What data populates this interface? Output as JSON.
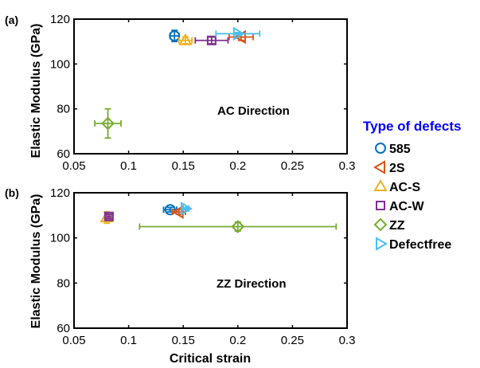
{
  "chart_data": [
    {
      "type": "scatter",
      "panel_label": "(a)",
      "annotation": "AC Direction",
      "xlabel": "",
      "ylabel": "Elastic Modulus (GPa)",
      "xlim": [
        0.05,
        0.3
      ],
      "ylim": [
        60,
        120
      ],
      "xticks": [
        "0.05",
        "0.1",
        "0.15",
        "0.2",
        "0.25",
        "0.3"
      ],
      "yticks": [
        "60",
        "80",
        "100",
        "120"
      ],
      "xtick_values": [
        0.05,
        0.1,
        0.15,
        0.2,
        0.25,
        0.3
      ],
      "ytick_values": [
        60,
        80,
        100,
        120
      ],
      "series": [
        {
          "name": "585",
          "marker": "circle",
          "color": "#0072BD",
          "x": 0.142,
          "y": 112.5,
          "xerr": 0.004,
          "yerr": 2.5
        },
        {
          "name": "2S",
          "marker": "triangle-left",
          "color": "#D95319",
          "x": 0.203,
          "y": 112.0,
          "xerr": 0.011,
          "yerr": 1.5
        },
        {
          "name": "AC-S",
          "marker": "triangle-up",
          "color": "#EDB120",
          "x": 0.152,
          "y": 110.5,
          "xerr": 0.006,
          "yerr": 1.5
        },
        {
          "name": "AC-W",
          "marker": "square",
          "color": "#7E2F8E",
          "x": 0.176,
          "y": 110.5,
          "xerr": 0.015,
          "yerr": 1.5
        },
        {
          "name": "ZZ",
          "marker": "diamond",
          "color": "#77AC30",
          "x": 0.081,
          "y": 73.5,
          "xerr": 0.012,
          "yerr": 6.5
        },
        {
          "name": "Defectfree",
          "marker": "triangle-right",
          "color": "#4DBEEE",
          "x": 0.2,
          "y": 113.5,
          "xerr": 0.02,
          "yerr": 0.5
        }
      ]
    },
    {
      "type": "scatter",
      "panel_label": "(b)",
      "annotation": "ZZ Direction",
      "xlabel": "Critical strain",
      "ylabel": "Elastic Modulus (GPa)",
      "xlim": [
        0.05,
        0.3
      ],
      "ylim": [
        60,
        120
      ],
      "xticks": [
        "0.05",
        "0.1",
        "0.15",
        "0.2",
        "0.25",
        "0.3"
      ],
      "yticks": [
        "60",
        "80",
        "100",
        "120"
      ],
      "xtick_values": [
        0.05,
        0.1,
        0.15,
        0.2,
        0.25,
        0.3
      ],
      "ytick_values": [
        60,
        80,
        100,
        120
      ],
      "series": [
        {
          "name": "585",
          "marker": "circle",
          "color": "#0072BD",
          "x": 0.138,
          "y": 112.5,
          "xerr": 0.006,
          "yerr": 1.0
        },
        {
          "name": "2S",
          "marker": "triangle-left",
          "color": "#D95319",
          "x": 0.146,
          "y": 111.5,
          "xerr": 0.006,
          "yerr": 1.0
        },
        {
          "name": "AC-S",
          "marker": "triangle-up",
          "color": "#EDB120",
          "x": 0.08,
          "y": 109.0,
          "xerr": 0.002,
          "yerr": 2.5
        },
        {
          "name": "AC-W",
          "marker": "square",
          "color": "#7E2F8E",
          "x": 0.082,
          "y": 109.5,
          "xerr": 0.002,
          "yerr": 1.0
        },
        {
          "name": "ZZ",
          "marker": "diamond",
          "color": "#77AC30",
          "x": 0.2,
          "y": 105.0,
          "xerr": 0.09,
          "yerr": 2.0
        },
        {
          "name": "Defectfree",
          "marker": "triangle-right",
          "color": "#4DBEEE",
          "x": 0.152,
          "y": 113.0,
          "xerr": 0.003,
          "yerr": 0.5
        }
      ]
    }
  ],
  "legend": {
    "title": "Type of defects",
    "title_color": "#0000FF",
    "placement": "right",
    "items": [
      {
        "label": "585",
        "marker": "circle",
        "color": "#0072BD"
      },
      {
        "label": "2S",
        "marker": "triangle-left",
        "color": "#D95319"
      },
      {
        "label": "AC-S",
        "marker": "triangle-up",
        "color": "#EDB120"
      },
      {
        "label": "AC-W",
        "marker": "square",
        "color": "#7E2F8E"
      },
      {
        "label": "ZZ",
        "marker": "diamond",
        "color": "#77AC30"
      },
      {
        "label": "Defectfree",
        "marker": "triangle-right",
        "color": "#4DBEEE"
      }
    ]
  }
}
